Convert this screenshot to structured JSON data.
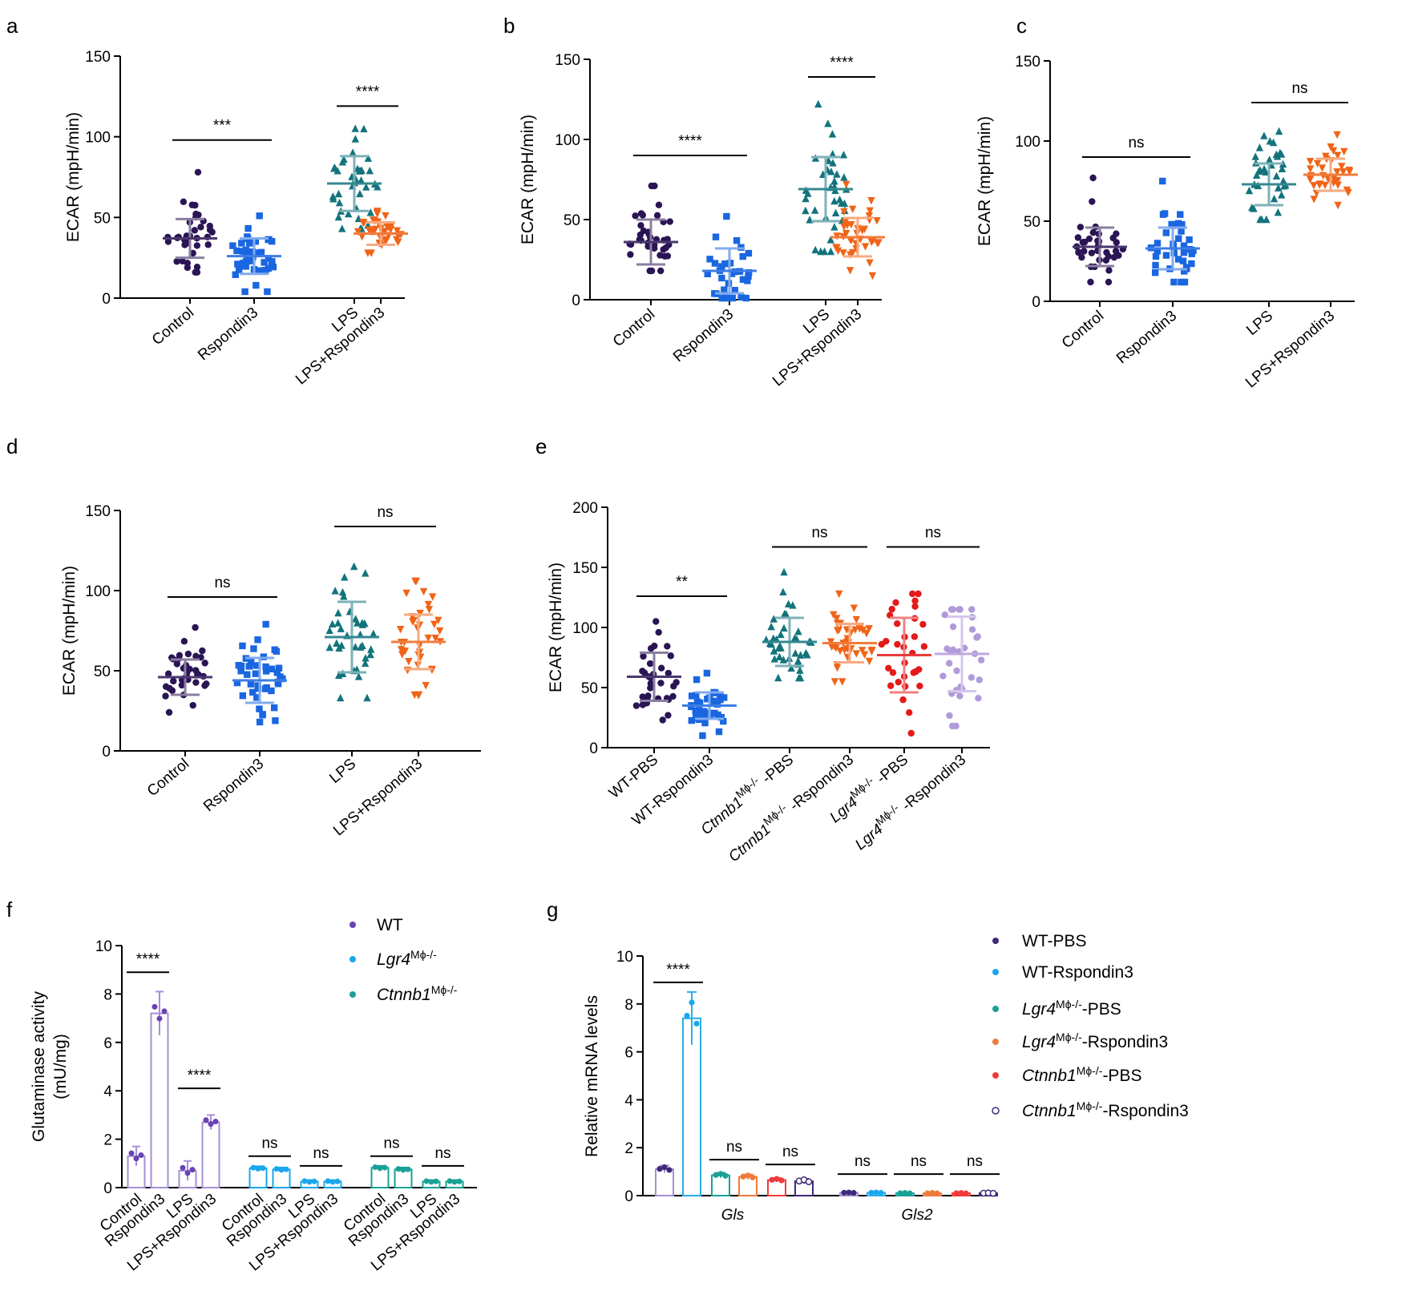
{
  "chart_data": [
    {
      "panel": "a",
      "type": "scatter",
      "ylabel": "ECAR (mpH/min)",
      "ylim": [
        0,
        150
      ],
      "yticks": [
        "0",
        "50",
        "100",
        "150"
      ],
      "groups": [
        {
          "label": "Control",
          "mean": 37,
          "sd": 12,
          "min": 16,
          "max": 78,
          "n": 36,
          "color": "#2a1454",
          "marker": "circle"
        },
        {
          "label": "Rspondin3",
          "mean": 26,
          "sd": 11,
          "min": 4,
          "max": 51,
          "n": 44,
          "color": "#1a66e0",
          "marker": "square"
        },
        {
          "label": "LPS",
          "mean": 71,
          "sd": 17,
          "min": 43,
          "max": 105,
          "n": 38,
          "color": "#13737c",
          "marker": "triangle"
        },
        {
          "label": "LPS+Rspondin3",
          "mean": 40,
          "sd": 7,
          "min": 28,
          "max": 54,
          "n": 38,
          "color": "#f06418",
          "marker": "triangle-down"
        }
      ],
      "significance": [
        {
          "from": 0,
          "to": 1,
          "y": 98,
          "text": "***"
        },
        {
          "from": 2,
          "to": 3,
          "y": 119,
          "text": "****"
        }
      ]
    },
    {
      "panel": "b",
      "type": "scatter",
      "ylabel": "ECAR (mpH/min)",
      "ylim": [
        0,
        150
      ],
      "yticks": [
        "0",
        "50",
        "100",
        "150"
      ],
      "groups": [
        {
          "label": "Control",
          "mean": 36,
          "sd": 14,
          "min": 18,
          "max": 71,
          "n": 36,
          "color": "#2a1454",
          "marker": "circle"
        },
        {
          "label": "Rspondin3",
          "mean": 18,
          "sd": 14,
          "min": 1,
          "max": 52,
          "n": 32,
          "color": "#1a66e0",
          "marker": "square"
        },
        {
          "label": "LPS",
          "mean": 69,
          "sd": 20,
          "min": 30,
          "max": 122,
          "n": 38,
          "color": "#13737c",
          "marker": "triangle"
        },
        {
          "label": "LPS+Rspondin3",
          "mean": 39,
          "sd": 12,
          "min": 15,
          "max": 72,
          "n": 38,
          "color": "#f06418",
          "marker": "triangle-down"
        }
      ],
      "significance": [
        {
          "from": 0,
          "to": 1,
          "y": 90,
          "text": "****"
        },
        {
          "from": 2,
          "to": 3,
          "y": 139,
          "text": "****"
        }
      ]
    },
    {
      "panel": "c",
      "type": "scatter",
      "ylabel": "ECAR (mpH/min)",
      "ylim": [
        0,
        150
      ],
      "yticks": [
        "0",
        "50",
        "100",
        "150"
      ],
      "groups": [
        {
          "label": "Control",
          "mean": 34,
          "sd": 12,
          "min": 12,
          "max": 77,
          "n": 36,
          "color": "#2a1454",
          "marker": "circle"
        },
        {
          "label": "Rspondin3",
          "mean": 33,
          "sd": 13,
          "min": 12,
          "max": 75,
          "n": 38,
          "color": "#1a66e0",
          "marker": "square"
        },
        {
          "label": "LPS",
          "mean": 73,
          "sd": 13,
          "min": 51,
          "max": 106,
          "n": 36,
          "color": "#13737c",
          "marker": "triangle"
        },
        {
          "label": "LPS+Rspondin3",
          "mean": 79,
          "sd": 10,
          "min": 60,
          "max": 104,
          "n": 34,
          "color": "#f06418",
          "marker": "triangle-down"
        }
      ],
      "significance": [
        {
          "from": 0,
          "to": 1,
          "y": 90,
          "text": "ns"
        },
        {
          "from": 2,
          "to": 3,
          "y": 124,
          "text": "ns"
        }
      ]
    },
    {
      "panel": "d",
      "type": "scatter",
      "ylabel": "ECAR (mpH/min)",
      "ylim": [
        0,
        150
      ],
      "yticks": [
        "0",
        "50",
        "100",
        "150"
      ],
      "groups": [
        {
          "label": "Control",
          "mean": 46,
          "sd": 11,
          "min": 24,
          "max": 77,
          "n": 38,
          "color": "#2a1454",
          "marker": "circle"
        },
        {
          "label": "Rspondin3",
          "mean": 44,
          "sd": 14,
          "min": 18,
          "max": 79,
          "n": 42,
          "color": "#1a66e0",
          "marker": "square"
        },
        {
          "label": "LPS",
          "mean": 71,
          "sd": 22,
          "min": 33,
          "max": 115,
          "n": 38,
          "color": "#13737c",
          "marker": "triangle"
        },
        {
          "label": "LPS+Rspondin3",
          "mean": 68,
          "sd": 17,
          "min": 35,
          "max": 106,
          "n": 38,
          "color": "#f06418",
          "marker": "triangle-down"
        }
      ],
      "significance": [
        {
          "from": 0,
          "to": 1,
          "y": 96,
          "text": "ns"
        },
        {
          "from": 2,
          "to": 3,
          "y": 140,
          "text": "ns"
        }
      ]
    },
    {
      "panel": "e",
      "type": "scatter",
      "ylabel": "ECAR (mpH/min)",
      "ylim": [
        0,
        200
      ],
      "yticks": [
        "0",
        "50",
        "100",
        "150",
        "200"
      ],
      "groups": [
        {
          "label": "WT-PBS",
          "mean": 59,
          "sd": 20,
          "min": 23,
          "max": 105,
          "n": 32,
          "color": "#2a1454",
          "marker": "circle"
        },
        {
          "label": "WT-Rspondin3",
          "mean": 35,
          "sd": 11,
          "min": 10,
          "max": 62,
          "n": 40,
          "color": "#1a66e0",
          "marker": "square"
        },
        {
          "label": "Ctnnb1Mϕ-/- -PBS",
          "mean": 88,
          "sd": 20,
          "min": 58,
          "max": 146,
          "n": 40,
          "color": "#13737c",
          "marker": "triangle"
        },
        {
          "label": "Ctnnb1Mϕ-/- -Rspondin3",
          "mean": 87,
          "sd": 16,
          "min": 55,
          "max": 128,
          "n": 40,
          "color": "#f06418",
          "marker": "triangle-down"
        },
        {
          "label": "Lgr4Mϕ-/- -PBS",
          "mean": 77,
          "sd": 31,
          "min": 12,
          "max": 128,
          "n": 32,
          "color": "#e41a1a",
          "marker": "circle"
        },
        {
          "label": "Lgr4Mϕ-/- -Rspondin3",
          "mean": 78,
          "sd": 31,
          "min": 18,
          "max": 115,
          "n": 32,
          "color": "#b19ad9",
          "marker": "circle"
        }
      ],
      "xlabels": [
        {
          "prefix": "WT-PBS",
          "gene": "",
          "sup": "",
          "suffix": ""
        },
        {
          "prefix": "WT-Rspondin3",
          "gene": "",
          "sup": "",
          "suffix": ""
        },
        {
          "prefix": "",
          "gene": "Ctnnb1",
          "sup": "Mϕ-/-",
          "suffix": " -PBS"
        },
        {
          "prefix": "",
          "gene": "Ctnnb1",
          "sup": "Mϕ-/-",
          "suffix": " -Rspondin3"
        },
        {
          "prefix": "",
          "gene": "Lgr4",
          "sup": "Mϕ-/-",
          "suffix": " -PBS"
        },
        {
          "prefix": "",
          "gene": "Lgr4",
          "sup": "Mϕ-/-",
          "suffix": " -Rspondin3"
        }
      ],
      "significance": [
        {
          "from": 0,
          "to": 1,
          "y": 126,
          "text": "**"
        },
        {
          "from": 2,
          "to": 3,
          "y": 167,
          "text": "ns"
        },
        {
          "from": 4,
          "to": 5,
          "y": 167,
          "text": "ns"
        }
      ]
    },
    {
      "panel": "f",
      "type": "bar",
      "ylabel": "Glutaminase activity",
      "ylabel2": "(mU/mg)",
      "ylim": [
        0,
        10
      ],
      "yticks": [
        "0",
        "2",
        "4",
        "6",
        "8",
        "10"
      ],
      "categories": [
        "Control",
        "Rspondin3",
        "LPS",
        "LPS+Rspondin3"
      ],
      "series": [
        {
          "name": "WT",
          "gene": "",
          "sup": "",
          "color": "#a58fd6",
          "dot": "#6a42b2",
          "values": [
            1.3,
            7.2,
            0.7,
            2.7
          ],
          "sd": [
            0.4,
            0.9,
            0.4,
            0.3
          ]
        },
        {
          "name": "",
          "gene": "Lgr4",
          "sup": "Mϕ-/-",
          "color": "#1aa7ec",
          "dot": "#1aa7ec",
          "values": [
            0.8,
            0.75,
            0.25,
            0.25
          ],
          "sd": [
            0.08,
            0.08,
            0.06,
            0.06
          ]
        },
        {
          "name": "",
          "gene": "Ctnnb1",
          "sup": "Mϕ-/-",
          "color": "#1aa196",
          "dot": "#1aa196",
          "values": [
            0.82,
            0.75,
            0.25,
            0.25
          ],
          "sd": [
            0.08,
            0.08,
            0.06,
            0.06
          ]
        }
      ],
      "significance": [
        {
          "group": 0,
          "from": 0,
          "to": 1,
          "y": 8.9,
          "text": "****"
        },
        {
          "group": 0,
          "from": 2,
          "to": 3,
          "y": 4.1,
          "text": "****"
        },
        {
          "group": 1,
          "from": 0,
          "to": 1,
          "y": 1.3,
          "text": "ns"
        },
        {
          "group": 1,
          "from": 2,
          "to": 3,
          "y": 0.9,
          "text": "ns"
        },
        {
          "group": 2,
          "from": 0,
          "to": 1,
          "y": 1.3,
          "text": "ns"
        },
        {
          "group": 2,
          "from": 2,
          "to": 3,
          "y": 0.9,
          "text": "ns"
        }
      ]
    },
    {
      "panel": "g",
      "type": "bar",
      "ylabel": "Relative mRNA levels",
      "ylim": [
        0,
        10
      ],
      "yticks": [
        "0",
        "2",
        "4",
        "6",
        "8",
        "10"
      ],
      "categories": [
        "Gls",
        "Gls2"
      ],
      "series": [
        {
          "prefix": "WT-PBS",
          "gene": "",
          "sup": "",
          "suffix": "",
          "color": "#a58fd6",
          "dot": "#3f2a7a",
          "values": [
            1.1,
            0.12
          ],
          "sd": [
            0.15,
            0.02
          ]
        },
        {
          "prefix": "WT-Rspondin3",
          "gene": "",
          "sup": "",
          "suffix": "",
          "color": "#2aaee6",
          "dot": "#1aa7ec",
          "values": [
            7.4,
            0.12
          ],
          "sd": [
            1.1,
            0.02
          ]
        },
        {
          "prefix": "",
          "gene": "Lgr4",
          "sup": "Mϕ-/-",
          "suffix": "-PBS",
          "color": "#1aa196",
          "dot": "#1aa196",
          "values": [
            0.85,
            0.1
          ],
          "sd": [
            0.1,
            0.02
          ]
        },
        {
          "prefix": "",
          "gene": "Lgr4",
          "sup": "Mϕ-/-",
          "suffix": "-Rspondin3",
          "color": "#f07a3a",
          "dot": "#f07a3a",
          "values": [
            0.78,
            0.1
          ],
          "sd": [
            0.1,
            0.02
          ]
        },
        {
          "prefix": "",
          "gene": "Ctnnb1",
          "sup": "Mϕ-/-",
          "suffix": "-PBS",
          "color": "#f03a3a",
          "dot": "#f03a3a",
          "values": [
            0.65,
            0.1
          ],
          "sd": [
            0.08,
            0.02
          ]
        },
        {
          "prefix": "",
          "gene": "Ctnnb1",
          "sup": "Mϕ-/-",
          "suffix": "-Rspondin3",
          "color": "#3f2a7a",
          "dot": "#ffffff",
          "values": [
            0.6,
            0.1
          ],
          "sd": [
            0.1,
            0.02
          ]
        }
      ],
      "significance": [
        {
          "category": 0,
          "from": 0,
          "to": 1,
          "y": 8.9,
          "text": "****"
        },
        {
          "category": 0,
          "from": 2,
          "to": 3,
          "y": 1.5,
          "text": "ns"
        },
        {
          "category": 0,
          "from": 4,
          "to": 5,
          "y": 1.3,
          "text": "ns"
        },
        {
          "category": 1,
          "from": 0,
          "to": 1,
          "y": 0.9,
          "text": "ns"
        },
        {
          "category": 1,
          "from": 2,
          "to": 3,
          "y": 0.9,
          "text": "ns"
        },
        {
          "category": 1,
          "from": 4,
          "to": 5,
          "y": 0.9,
          "text": "ns"
        }
      ]
    }
  ]
}
